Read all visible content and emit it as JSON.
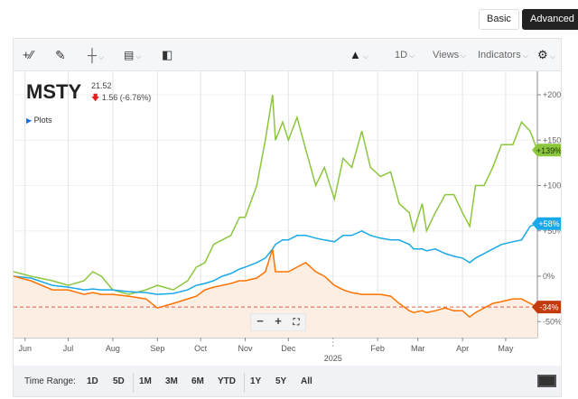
{
  "modes": {
    "basic": "Basic",
    "advanced": "Advanced"
  },
  "toolbar": {
    "chart_type_icon": "mountain-chart-icon",
    "interval": "1D",
    "views": "Views",
    "indicators": "Indicators",
    "settings_icon": "gear-icon"
  },
  "quote": {
    "symbol": "MSTY",
    "price": "21.52",
    "change": "1.56 (-6.76%)",
    "plots": "Plots"
  },
  "zoom_controls": {
    "minus": "−",
    "plus": "+",
    "fullscreen_icon": "fullscreen-icon"
  },
  "time_range": {
    "label": "Time Range:",
    "options": [
      "1D",
      "5D",
      "1M",
      "3M",
      "6M",
      "YTD",
      "1Y",
      "5Y",
      "All"
    ]
  },
  "chart_data": {
    "type": "line",
    "yticks": [
      "+200%",
      "+150%",
      "+100%",
      "+50%",
      "0%",
      "-50%"
    ],
    "ytick_values": [
      200,
      150,
      100,
      50,
      0,
      -50
    ],
    "ylim": [
      -65,
      220
    ],
    "xticks": [
      "Jun",
      "Jul",
      "Aug",
      "Sep",
      "Oct",
      "Nov",
      "Dec",
      "Feb",
      "Mar",
      "Apr",
      "May"
    ],
    "xtick_dates": [
      "2024-06-01",
      "2024-07-01",
      "2024-08-01",
      "2024-09-01",
      "2024-10-01",
      "2024-11-01",
      "2024-12-01",
      "2025-02-01",
      "2025-03-01",
      "2025-04-01",
      "2025-05-01"
    ],
    "year_label": "2025",
    "year_date": "2025-01-01",
    "xlim": [
      "2024-05-24",
      "2025-05-23"
    ],
    "grid": true,
    "dates": [
      "2024-05-24",
      "2024-06-05",
      "2024-06-20",
      "2024-07-01",
      "2024-07-12",
      "2024-07-18",
      "2024-07-24",
      "2024-08-01",
      "2024-08-12",
      "2024-08-24",
      "2024-09-01",
      "2024-09-12",
      "2024-09-22",
      "2024-09-28",
      "2024-10-04",
      "2024-10-10",
      "2024-10-16",
      "2024-10-22",
      "2024-10-28",
      "2024-11-01",
      "2024-11-09",
      "2024-11-15",
      "2024-11-20",
      "2024-11-22",
      "2024-11-27",
      "2024-12-01",
      "2024-12-07",
      "2024-12-13",
      "2024-12-20",
      "2024-12-26",
      "2025-01-02",
      "2025-01-08",
      "2025-01-14",
      "2025-01-21",
      "2025-01-27",
      "2025-02-03",
      "2025-02-10",
      "2025-02-16",
      "2025-02-23",
      "2025-02-26",
      "2025-03-04",
      "2025-03-07",
      "2025-03-13",
      "2025-03-20",
      "2025-03-26",
      "2025-04-01",
      "2025-04-06",
      "2025-04-10",
      "2025-04-16",
      "2025-04-22",
      "2025-04-28",
      "2025-05-06",
      "2025-05-12",
      "2025-05-18",
      "2025-05-23"
    ],
    "series": [
      {
        "color": "#8cc63f",
        "badge": "+139%",
        "values": [
          5,
          0,
          -5,
          -10,
          -5,
          5,
          0,
          -15,
          -20,
          -15,
          -10,
          -15,
          -5,
          10,
          15,
          35,
          40,
          45,
          65,
          65,
          100,
          150,
          200,
          150,
          170,
          150,
          175,
          140,
          100,
          120,
          85,
          130,
          120,
          160,
          120,
          110,
          115,
          80,
          70,
          50,
          80,
          50,
          70,
          90,
          90,
          70,
          55,
          100,
          100,
          120,
          145,
          145,
          170,
          160,
          139
        ]
      },
      {
        "color": "#1aa9e8",
        "badge": "+58%",
        "values": [
          0,
          -2,
          -10,
          -12,
          -15,
          -14,
          -15,
          -15,
          -17,
          -18,
          -20,
          -19,
          -15,
          -10,
          -8,
          -5,
          0,
          3,
          8,
          10,
          15,
          20,
          30,
          35,
          40,
          40,
          45,
          45,
          42,
          40,
          38,
          45,
          45,
          50,
          45,
          42,
          40,
          40,
          35,
          30,
          30,
          28,
          30,
          25,
          22,
          20,
          15,
          20,
          25,
          30,
          35,
          38,
          40,
          55,
          58
        ]
      },
      {
        "color": "#ff7300",
        "badge": "-34%",
        "badge_color": "#c23b0e",
        "fill": "#fdeee4",
        "values": [
          0,
          -5,
          -15,
          -15,
          -20,
          -18,
          -20,
          -20,
          -22,
          -25,
          -35,
          -30,
          -25,
          -22,
          -15,
          -12,
          -10,
          -8,
          -5,
          -5,
          -2,
          5,
          30,
          5,
          5,
          5,
          10,
          15,
          5,
          0,
          -10,
          -15,
          -18,
          -20,
          -20,
          -20,
          -22,
          -30,
          -38,
          -40,
          -38,
          -40,
          -38,
          -35,
          -38,
          -38,
          -45,
          -40,
          -35,
          -30,
          -28,
          -25,
          -25,
          -30,
          -34
        ]
      }
    ],
    "reference_line": {
      "value": -34,
      "color": "#e05a4a"
    }
  }
}
